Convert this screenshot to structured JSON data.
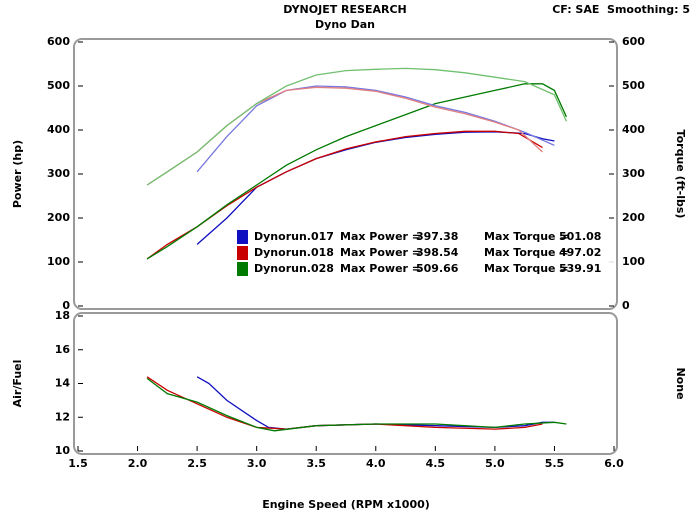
{
  "header": {
    "title": "DYNOJET RESEARCH",
    "subtitle": "Dyno Dan",
    "settings": "CF: SAE  Smoothing: 5"
  },
  "chart_data": [
    {
      "type": "line",
      "y_label": "Power (hp)",
      "y2_label": "Torque (ft-lbs)",
      "xlim": [
        1.5,
        6.0
      ],
      "ylim": [
        0,
        600
      ],
      "yticks": [
        0,
        100,
        200,
        300,
        400,
        500,
        600
      ],
      "y2lim": [
        0,
        600
      ],
      "y2ticks": [
        0,
        100,
        200,
        300,
        400,
        500,
        600
      ],
      "series": [
        {
          "name": "Dynorun.017",
          "color": "#1010c0",
          "max_label": "Max Power =",
          "max_value": 397.38,
          "x": [
            2.5,
            2.75,
            3.0,
            3.25,
            3.5,
            3.75,
            4.0,
            4.25,
            4.5,
            4.75,
            5.0,
            5.25,
            5.4,
            5.5
          ],
          "values": [
            140,
            200,
            270,
            305,
            335,
            355,
            372,
            383,
            390,
            395,
            396,
            392,
            380,
            375
          ]
        },
        {
          "name": "Dynorun.018",
          "color": "#c80000",
          "max_label": "Max Power =",
          "max_value": 398.54,
          "x": [
            2.08,
            2.25,
            2.5,
            2.75,
            3.0,
            3.25,
            3.5,
            3.75,
            4.0,
            4.25,
            4.5,
            4.75,
            5.0,
            5.2,
            5.4
          ],
          "values": [
            107,
            140,
            180,
            228,
            270,
            305,
            335,
            357,
            373,
            385,
            392,
            397,
            397,
            392,
            360
          ]
        },
        {
          "name": "Dynorun.028",
          "color": "#007a00",
          "max_label": "Max Power =",
          "max_value": 509.66,
          "x": [
            2.08,
            2.25,
            2.5,
            2.75,
            3.0,
            3.25,
            3.5,
            3.75,
            4.0,
            4.25,
            4.5,
            4.75,
            5.0,
            5.25,
            5.4,
            5.5,
            5.6
          ],
          "values": [
            107,
            135,
            180,
            230,
            275,
            320,
            355,
            385,
            410,
            435,
            460,
            475,
            490,
            505,
            505,
            490,
            430
          ]
        },
        {
          "axis": "y2",
          "color": "#7878e0",
          "max_label": "Max Torque =",
          "max_value": 501.08,
          "x": [
            2.5,
            2.75,
            3.0,
            3.25,
            3.5,
            3.75,
            4.0,
            4.25,
            4.5,
            4.75,
            5.0,
            5.25,
            5.5
          ],
          "values": [
            305,
            385,
            455,
            490,
            500,
            498,
            490,
            475,
            455,
            440,
            420,
            395,
            365
          ]
        },
        {
          "axis": "y2",
          "color": "#e08080",
          "max_label": "Max Torque =",
          "max_value": 497.02,
          "x": [
            2.08,
            2.25,
            2.5,
            2.75,
            3.0,
            3.25,
            3.5,
            3.75,
            4.0,
            4.25,
            4.5,
            4.75,
            5.0,
            5.2,
            5.4
          ],
          "values": [
            275,
            305,
            350,
            410,
            460,
            490,
            497,
            495,
            488,
            472,
            452,
            437,
            418,
            400,
            350
          ]
        },
        {
          "axis": "y2",
          "color": "#70c070",
          "max_label": "Max Torque =",
          "max_value": 539.91,
          "x": [
            2.08,
            2.25,
            2.5,
            2.75,
            3.0,
            3.25,
            3.5,
            3.75,
            4.0,
            4.25,
            4.5,
            4.75,
            5.0,
            5.25,
            5.5,
            5.6
          ],
          "values": [
            275,
            305,
            350,
            410,
            460,
            500,
            525,
            535,
            538,
            540,
            537,
            530,
            520,
            510,
            480,
            420
          ]
        }
      ]
    },
    {
      "type": "line",
      "y_label": "Air/Fuel",
      "y2_label": "None",
      "x_label": "Engine Speed (RPM x1000)",
      "xlim": [
        1.5,
        6.0
      ],
      "xticks": [
        1.5,
        {
          "value": 2,
          "label": "2.0"
        },
        2.5,
        {
          "value": 3,
          "label": "3.0"
        },
        3.5,
        {
          "value": 4,
          "label": "4.0"
        },
        4.5,
        {
          "value": 5,
          "label": "5.0"
        },
        5.5,
        {
          "value": 6,
          "label": "6.0"
        }
      ],
      "ylim": [
        10,
        18
      ],
      "yticks": [
        10,
        12,
        14,
        16,
        18
      ],
      "series": [
        {
          "color": "#1010c0",
          "x": [
            2.5,
            2.6,
            2.75,
            3.0,
            3.1,
            3.25,
            3.5,
            4.0,
            4.5,
            5.0,
            5.25,
            5.4,
            5.5
          ],
          "values": [
            14.4,
            14.0,
            13.0,
            11.8,
            11.4,
            11.3,
            11.5,
            11.6,
            11.5,
            11.4,
            11.5,
            11.7,
            11.7
          ]
        },
        {
          "color": "#c80000",
          "x": [
            2.08,
            2.25,
            2.5,
            2.75,
            3.0,
            3.25,
            3.5,
            4.0,
            4.5,
            5.0,
            5.25,
            5.4
          ],
          "values": [
            14.4,
            13.6,
            12.8,
            12.0,
            11.4,
            11.3,
            11.5,
            11.6,
            11.4,
            11.3,
            11.4,
            11.6
          ]
        },
        {
          "color": "#007a00",
          "x": [
            2.08,
            2.25,
            2.5,
            2.75,
            3.0,
            3.15,
            3.5,
            4.0,
            4.5,
            5.0,
            5.25,
            5.5,
            5.6
          ],
          "values": [
            14.3,
            13.4,
            12.9,
            12.1,
            11.4,
            11.2,
            11.5,
            11.6,
            11.6,
            11.4,
            11.6,
            11.7,
            11.6
          ]
        }
      ]
    }
  ]
}
